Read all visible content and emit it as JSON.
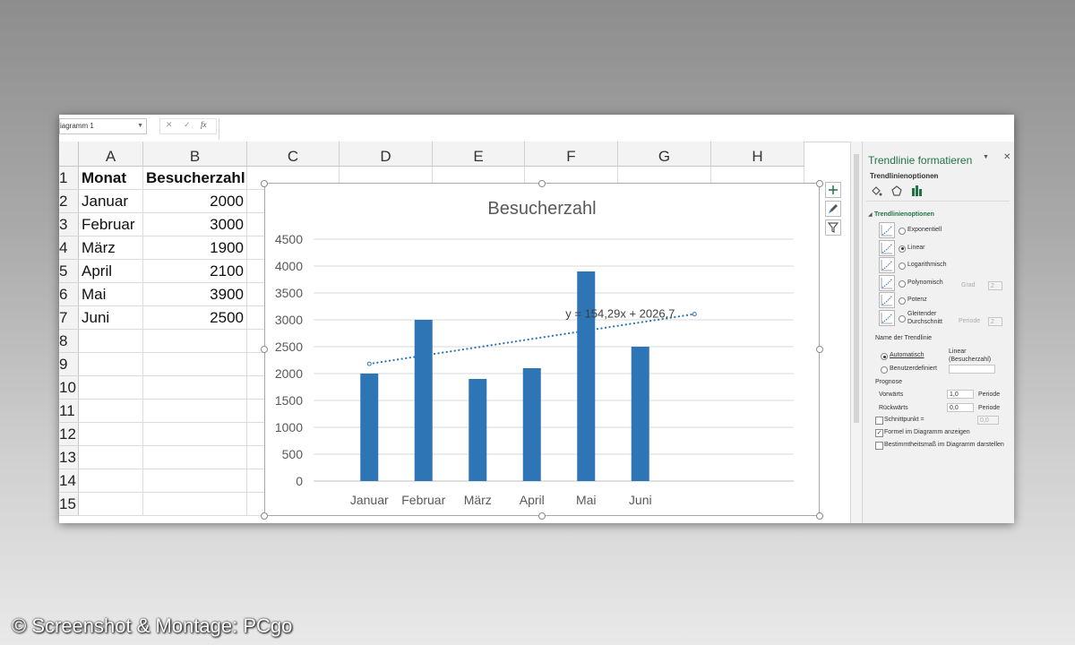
{
  "formula_bar": {
    "name_box": "iagramm 1",
    "cancel_icon": "✕",
    "confirm_icon": "✓",
    "fx_icon": "fx",
    "value": ""
  },
  "columns": [
    "A",
    "B",
    "C",
    "D",
    "E",
    "F",
    "G",
    "H"
  ],
  "rows": [
    "1",
    "2",
    "3",
    "4",
    "5",
    "6",
    "7",
    "8",
    "9",
    "10",
    "11",
    "12",
    "13",
    "14",
    "15"
  ],
  "table": {
    "headers": [
      "Monat",
      "Besucherzahl"
    ],
    "data": [
      [
        "Januar",
        "2000"
      ],
      [
        "Februar",
        "3000"
      ],
      [
        "März",
        "1900"
      ],
      [
        "April",
        "2100"
      ],
      [
        "Mai",
        "3900"
      ],
      [
        "Juni",
        "2500"
      ]
    ]
  },
  "chart_data": {
    "type": "bar",
    "title": "Besucherzahl",
    "categories": [
      "Januar",
      "Februar",
      "März",
      "April",
      "Mai",
      "Juni"
    ],
    "values": [
      2000,
      3000,
      1900,
      2100,
      3900,
      2500
    ],
    "ylim": [
      0,
      4500
    ],
    "yticks": [
      "0",
      "500",
      "1000",
      "1500",
      "2000",
      "2500",
      "3000",
      "3500",
      "4000",
      "4500"
    ],
    "grid": true,
    "bar_color": "#2e75b6",
    "trendline": {
      "type": "linear",
      "slope": 154.29,
      "intercept": 2026.7,
      "forward_periods": 1,
      "equation": "y = 154,29x + 2026,7",
      "color": "#2e75b6"
    }
  },
  "chart_buttons": [
    "chart-elements-icon",
    "chart-styles-icon",
    "chart-filters-icon"
  ],
  "pane": {
    "title": "Trendlinie formatieren",
    "dropdown_icon": "▼",
    "close_icon": "✕",
    "options_tab": "Trendlinienoptionen",
    "section": "Trendlinienoptionen",
    "types": [
      {
        "label": "Exponentiell",
        "selected": false
      },
      {
        "label": "Linear",
        "selected": true
      },
      {
        "label": "Logarithmisch",
        "selected": false
      },
      {
        "label": "Polynomisch",
        "selected": false
      },
      {
        "label": "Potenz",
        "selected": false
      },
      {
        "label": "Gleitender Durchschnitt",
        "selected": false
      }
    ],
    "grad_label": "Grad",
    "grad_value": "2",
    "periode_label": "Periode",
    "periode_value": "2",
    "name_heading": "Name der Trendlinie",
    "auto_label": "Automatisch",
    "auto_value": "Linear (Besucherzahl)",
    "custom_label": "Benutzerdefiniert",
    "prognose": "Prognose",
    "forward_label": "Vorwärts",
    "forward_value": "1,0",
    "forward_unit": "Periode",
    "backward_label": "Rückwärts",
    "backward_value": "0,0",
    "backward_unit": "Periode",
    "intercept_label": "Schnittpunkt =",
    "intercept_value": "0,0",
    "show_formula_label": "Formel im Diagramm anzeigen",
    "show_formula": true,
    "show_r2_label": "Bestimmtheitsmaß im Diagramm darstellen",
    "show_r2": false
  },
  "credit": "© Screenshot & Montage: PCgo"
}
